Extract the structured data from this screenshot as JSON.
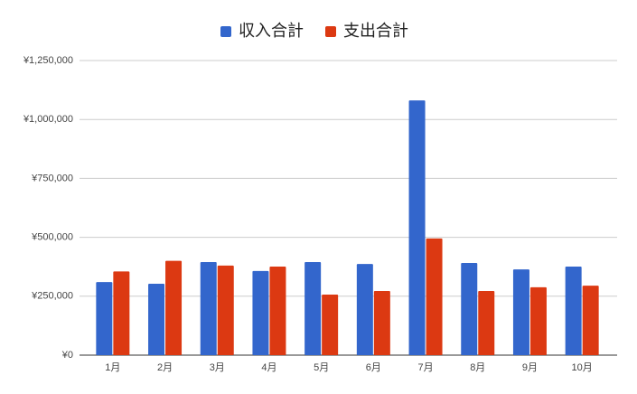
{
  "chart_data": {
    "type": "bar",
    "categories": [
      "1月",
      "2月",
      "3月",
      "4月",
      "5月",
      "6月",
      "7月",
      "8月",
      "9月",
      "10月"
    ],
    "series": [
      {
        "name": "収入合計",
        "color": "#3366cc",
        "values": [
          310000,
          303000,
          395000,
          357000,
          395000,
          387000,
          1081000,
          391000,
          364000,
          376000
        ]
      },
      {
        "name": "支出合計",
        "color": "#dc3912",
        "values": [
          355000,
          400000,
          380000,
          376000,
          257000,
          272000,
          495000,
          272000,
          288000,
          295000
        ]
      }
    ],
    "ylim": [
      0,
      1250000
    ],
    "yticks": [
      {
        "value": 0,
        "label": "¥0"
      },
      {
        "value": 250000,
        "label": "¥250,000"
      },
      {
        "value": 500000,
        "label": "¥500,000"
      },
      {
        "value": 750000,
        "label": "¥750,000"
      },
      {
        "value": 1000000,
        "label": "¥1,000,000"
      },
      {
        "value": 1250000,
        "label": "¥1,250,000"
      }
    ],
    "grid": true,
    "legend": "top"
  }
}
